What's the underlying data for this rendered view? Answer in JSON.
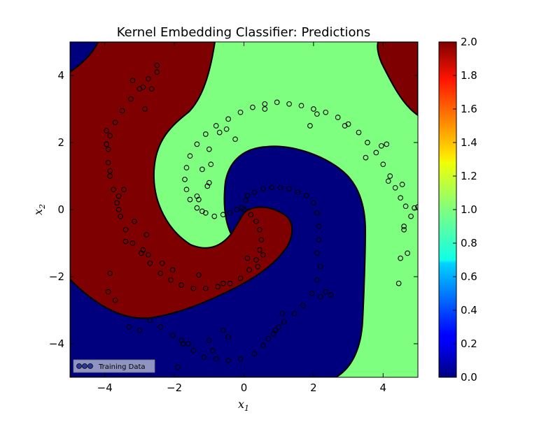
{
  "chart_data": {
    "type": "contourf+scatter",
    "title": "Kernel Embedding Classifier: Predictions",
    "xlabel": "x1",
    "ylabel": "x2",
    "xlim": [
      -5,
      5
    ],
    "ylim": [
      -5,
      5
    ],
    "xticks": [
      -4,
      -2,
      0,
      2,
      4
    ],
    "yticks": [
      -4,
      -2,
      0,
      2,
      4
    ],
    "xtick_labels": [
      "−4",
      "−2",
      "0",
      "2",
      "4"
    ],
    "ytick_labels": [
      "−4",
      "−2",
      "0",
      "2",
      "4"
    ],
    "regions": [
      {
        "class": 0,
        "color": "#00007f"
      },
      {
        "class": 1,
        "color": "#7fff7f"
      },
      {
        "class": 2,
        "color": "#7f0000"
      }
    ],
    "colorbar": {
      "range": [
        0,
        2
      ],
      "ticks": [
        0.0,
        0.2,
        0.4,
        0.6,
        0.8,
        1.0,
        1.2,
        1.4,
        1.6,
        1.8,
        2.0
      ],
      "tick_labels": [
        "0.0",
        "0.2",
        "0.4",
        "0.6",
        "0.8",
        "1.0",
        "1.2",
        "1.4",
        "1.6",
        "1.8",
        "2.0"
      ],
      "colormap": "jet"
    },
    "legend": {
      "label": "Training Data",
      "placement": "lower-left"
    },
    "points": [
      [
        0.0,
        0.0
      ],
      [
        0.05,
        0.28
      ],
      [
        0.1,
        0.42
      ],
      [
        0.3,
        0.52
      ],
      [
        0.55,
        0.62
      ],
      [
        0.8,
        0.66
      ],
      [
        1.05,
        0.65
      ],
      [
        1.3,
        0.62
      ],
      [
        1.55,
        0.52
      ],
      [
        1.8,
        0.42
      ],
      [
        2.0,
        0.2
      ],
      [
        2.1,
        -0.1
      ],
      [
        2.15,
        -0.5
      ],
      [
        2.15,
        -0.9
      ],
      [
        2.1,
        -1.3
      ],
      [
        2.2,
        -1.7
      ],
      [
        2.1,
        -2.1
      ],
      [
        1.95,
        -2.5
      ],
      [
        1.7,
        -2.85
      ],
      [
        1.45,
        -3.1
      ],
      [
        1.15,
        -3.35
      ],
      [
        0.9,
        -3.6
      ],
      [
        0.7,
        -3.85
      ],
      [
        0.55,
        -4.05
      ],
      [
        0.3,
        -4.3
      ],
      [
        -0.1,
        -4.45
      ],
      [
        -0.45,
        -4.5
      ],
      [
        -0.8,
        -4.45
      ],
      [
        -1.15,
        -4.4
      ],
      [
        -1.45,
        -4.2
      ],
      [
        -1.75,
        -4.0
      ],
      [
        -2.05,
        -3.75
      ],
      [
        -2.4,
        -3.5
      ],
      [
        -2.7,
        -3.3
      ],
      [
        -3.0,
        -3.6
      ],
      [
        -3.3,
        -3.5
      ],
      [
        -3.7,
        -2.7
      ],
      [
        -3.9,
        -2.45
      ],
      [
        -3.85,
        -1.9
      ],
      [
        1.0,
        -3.5
      ],
      [
        1.1,
        -3.1
      ],
      [
        -1.9,
        -4.7
      ],
      [
        -1.6,
        -4.0
      ],
      [
        -1.8,
        -3.9
      ],
      [
        -1.0,
        -3.9
      ],
      [
        -0.6,
        -3.6
      ],
      [
        -0.45,
        -3.8
      ],
      [
        -0.9,
        -4.2
      ],
      [
        0.85,
        -3.7
      ],
      [
        2.5,
        -2.55
      ],
      [
        2.2,
        -2.6
      ],
      [
        2.35,
        -2.45
      ],
      [
        0.2,
        -0.15
      ],
      [
        0.35,
        -0.35
      ],
      [
        0.45,
        -0.6
      ],
      [
        0.5,
        -0.9
      ],
      [
        0.45,
        -1.2
      ],
      [
        0.35,
        -1.5
      ],
      [
        0.15,
        -1.8
      ],
      [
        -0.1,
        -2.05
      ],
      [
        -0.4,
        -2.2
      ],
      [
        -0.75,
        -2.3
      ],
      [
        -1.1,
        -2.35
      ],
      [
        -1.45,
        -2.35
      ],
      [
        -1.8,
        -2.25
      ],
      [
        -2.1,
        -2.1
      ],
      [
        -2.4,
        -1.9
      ],
      [
        -2.7,
        -1.6
      ],
      [
        -2.95,
        -1.3
      ],
      [
        -3.2,
        -1.0
      ],
      [
        -3.4,
        -0.6
      ],
      [
        -3.55,
        -0.2
      ],
      [
        -3.65,
        0.2
      ],
      [
        -3.75,
        0.6
      ],
      [
        -3.85,
        1.0
      ],
      [
        -3.9,
        1.4
      ],
      [
        -3.9,
        1.8
      ],
      [
        -3.85,
        2.2
      ],
      [
        -3.7,
        2.6
      ],
      [
        -3.5,
        2.95
      ],
      [
        -3.25,
        3.3
      ],
      [
        -3.0,
        3.6
      ],
      [
        -2.75,
        3.9
      ],
      [
        -2.5,
        4.1
      ],
      [
        -2.5,
        4.3
      ],
      [
        -2.85,
        3.0
      ],
      [
        -2.9,
        3.65
      ],
      [
        -3.2,
        3.85
      ],
      [
        -2.65,
        3.6
      ],
      [
        -3.85,
        1.15
      ],
      [
        -3.45,
        0.6
      ],
      [
        -2.8,
        -0.75
      ],
      [
        -3.15,
        -0.35
      ],
      [
        -2.75,
        -1.35
      ],
      [
        -2.05,
        -1.8
      ],
      [
        -1.3,
        -1.95
      ],
      [
        -0.6,
        -2.2
      ],
      [
        0.1,
        -1.45
      ],
      [
        0.55,
        -1.35
      ],
      [
        0.4,
        -1.7
      ],
      [
        -2.35,
        -1.6
      ],
      [
        -2.9,
        -1.2
      ],
      [
        -3.4,
        -0.95
      ],
      [
        -3.6,
        0.4
      ],
      [
        -3.6,
        0.0
      ],
      [
        -3.95,
        1.95
      ],
      [
        -3.95,
        2.35
      ],
      [
        -0.05,
        0.05
      ],
      [
        -0.2,
        0.0
      ],
      [
        -0.4,
        -0.1
      ],
      [
        -0.6,
        -0.15
      ],
      [
        -0.85,
        -0.2
      ],
      [
        -1.1,
        -0.1
      ],
      [
        -1.35,
        0.05
      ],
      [
        -1.55,
        0.3
      ],
      [
        -1.65,
        0.6
      ],
      [
        -1.7,
        0.9
      ],
      [
        -1.65,
        1.25
      ],
      [
        -1.55,
        1.6
      ],
      [
        -1.35,
        1.95
      ],
      [
        -1.1,
        2.25
      ],
      [
        -0.8,
        2.5
      ],
      [
        -0.45,
        2.7
      ],
      [
        -0.1,
        2.9
      ],
      [
        0.25,
        3.05
      ],
      [
        0.6,
        3.15
      ],
      [
        0.95,
        3.2
      ],
      [
        1.3,
        3.15
      ],
      [
        1.65,
        3.1
      ],
      [
        2.0,
        3.0
      ],
      [
        2.35,
        2.9
      ],
      [
        2.7,
        2.75
      ],
      [
        3.0,
        2.55
      ],
      [
        3.3,
        2.3
      ],
      [
        3.55,
        2.0
      ],
      [
        3.8,
        1.7
      ],
      [
        4.0,
        1.35
      ],
      [
        4.2,
        1.0
      ],
      [
        4.35,
        0.65
      ],
      [
        4.5,
        0.35
      ],
      [
        4.65,
        0.1
      ],
      [
        4.8,
        -0.2
      ],
      [
        4.9,
        0.05
      ],
      [
        5.0,
        0.08
      ],
      [
        -0.5,
        2.4
      ],
      [
        -0.25,
        2.1
      ],
      [
        -1.0,
        1.8
      ],
      [
        -0.95,
        1.35
      ],
      [
        -1.2,
        1.2
      ],
      [
        -0.7,
        2.3
      ],
      [
        0.6,
        3.0
      ],
      [
        1.9,
        2.5
      ],
      [
        2.1,
        2.85
      ],
      [
        2.9,
        2.5
      ],
      [
        3.5,
        1.55
      ],
      [
        3.95,
        1.9
      ],
      [
        4.1,
        1.95
      ],
      [
        4.6,
        -0.6
      ],
      [
        4.5,
        -1.45
      ],
      [
        4.45,
        -2.2
      ],
      [
        4.6,
        -0.5
      ],
      [
        4.7,
        -1.3
      ],
      [
        4.15,
        0.85
      ],
      [
        4.55,
        0.75
      ],
      [
        -1.0,
        0.8
      ],
      [
        -1.05,
        0.7
      ],
      [
        -1.35,
        0.4
      ],
      [
        -1.2,
        -0.05
      ],
      [
        -1.3,
        0.3
      ]
    ]
  }
}
